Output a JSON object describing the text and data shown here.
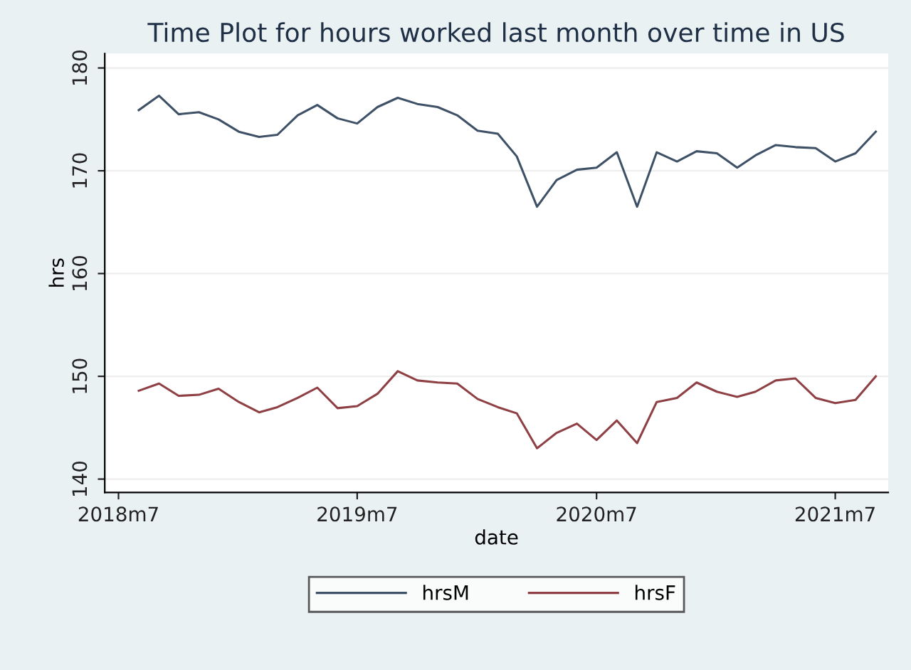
{
  "chart_data": {
    "type": "line",
    "title": "Time Plot for hours worked last month over time in US",
    "xlabel": "date",
    "ylabel": "hrs",
    "x": [
      "2018-08",
      "2018-09",
      "2018-10",
      "2018-11",
      "2018-12",
      "2019-01",
      "2019-02",
      "2019-03",
      "2019-04",
      "2019-05",
      "2019-06",
      "2019-07",
      "2019-08",
      "2019-09",
      "2019-10",
      "2019-11",
      "2019-12",
      "2020-01",
      "2020-02",
      "2020-03",
      "2020-04",
      "2020-05",
      "2020-06",
      "2020-07",
      "2020-08",
      "2020-09",
      "2020-10",
      "2020-11",
      "2020-12",
      "2021-01",
      "2021-02",
      "2021-03",
      "2021-04",
      "2021-05",
      "2021-06",
      "2021-07",
      "2021-08",
      "2021-09"
    ],
    "series": [
      {
        "name": "hrsM",
        "color": "#3e5166",
        "values": [
          175.9,
          177.3,
          175.5,
          175.7,
          175.0,
          173.8,
          173.3,
          173.5,
          175.4,
          176.4,
          175.1,
          174.6,
          176.2,
          177.1,
          176.5,
          176.2,
          175.4,
          173.9,
          173.6,
          171.4,
          166.5,
          169.1,
          170.1,
          170.3,
          171.8,
          166.5,
          171.8,
          170.9,
          171.9,
          171.7,
          170.3,
          171.5,
          172.5,
          172.3,
          172.2,
          170.9,
          171.7,
          173.8
        ]
      },
      {
        "name": "hrsF",
        "color": "#8e4045",
        "values": [
          148.6,
          149.3,
          148.1,
          148.2,
          148.8,
          147.5,
          146.5,
          147.0,
          147.9,
          148.9,
          146.9,
          147.1,
          148.3,
          150.5,
          149.6,
          149.4,
          149.3,
          147.8,
          147.0,
          146.4,
          143.0,
          144.5,
          145.4,
          143.8,
          145.7,
          143.5,
          147.5,
          147.9,
          149.4,
          148.5,
          148.0,
          148.5,
          149.6,
          149.8,
          147.9,
          147.4,
          147.7,
          150.0
        ]
      }
    ],
    "xlim": [
      "2018-06-10",
      "2021-09-20"
    ],
    "xticks": [
      {
        "value": "2018-07",
        "label": "2018m7"
      },
      {
        "value": "2019-07",
        "label": "2019m7"
      },
      {
        "value": "2020-07",
        "label": "2020m7"
      },
      {
        "value": "2021-07",
        "label": "2021m7"
      }
    ],
    "ylim": [
      138.7,
      181.4
    ],
    "yticks": [
      140,
      150,
      160,
      170,
      180
    ],
    "grid": "y",
    "legend": "bottom",
    "marker": "none",
    "line_style": "solid"
  }
}
